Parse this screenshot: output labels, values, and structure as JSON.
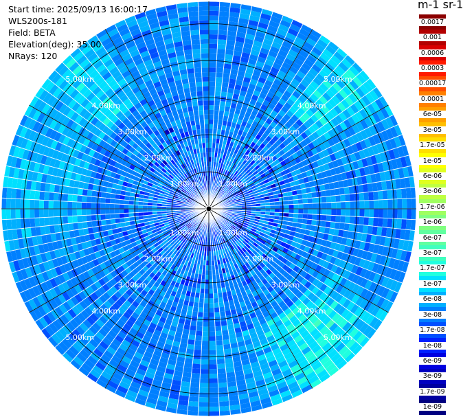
{
  "info": {
    "start_time": "Start time: 2025/09/13 16:00:17",
    "instrument": "WLS200s-181",
    "field": "Field: BETA",
    "elevation": "Elevation(deg): 35.00",
    "nrays": "NRays: 120"
  },
  "colorbar": {
    "title": "m-1 sr-1",
    "labels": [
      "0.0017",
      "0.001",
      "0.0006",
      "0.0003",
      "0.00017",
      "0.0001",
      "6e-05",
      "3e-05",
      "1.7e-05",
      "1e-05",
      "6e-06",
      "3e-06",
      "1.7e-06",
      "1e-06",
      "6e-07",
      "3e-07",
      "1.7e-07",
      "1e-07",
      "6e-08",
      "3e-08",
      "1.7e-08",
      "1e-08",
      "6e-09",
      "3e-09",
      "1.7e-09",
      "1e-09"
    ],
    "colors": [
      "#8b0000",
      "#b30000",
      "#d90000",
      "#ff1a00",
      "#ff4d00",
      "#ff8000",
      "#ff9f00",
      "#ffbf00",
      "#ffdf00",
      "#ffff00",
      "#dfff20",
      "#bfff40",
      "#9fff60",
      "#80ff80",
      "#60ffa0",
      "#40ffbf",
      "#20ffdf",
      "#00e0ff",
      "#00b0ff",
      "#0080ff",
      "#0050ff",
      "#0020ff",
      "#0000e0",
      "#0000c0",
      "#0000a0",
      "#000080"
    ]
  },
  "ring_labels": [
    "1.00km",
    "2.00km",
    "3.00km",
    "4.00km",
    "5.00km"
  ],
  "chart_data": {
    "type": "heatmap",
    "projection": "polar (PPI scan)",
    "field": "BETA",
    "elevation_deg": 35.0,
    "n_rays": 120,
    "range_rings_km": [
      1,
      2,
      3,
      4,
      5
    ],
    "max_range_km": 5.6,
    "colorscale": "log, 1e-09 to 0.0017",
    "dominant_values": "mostly ~3e-08 to 1e-07, higher (~1.7e-07 to 6e-07) near 4-5 km in SE and NE"
  }
}
